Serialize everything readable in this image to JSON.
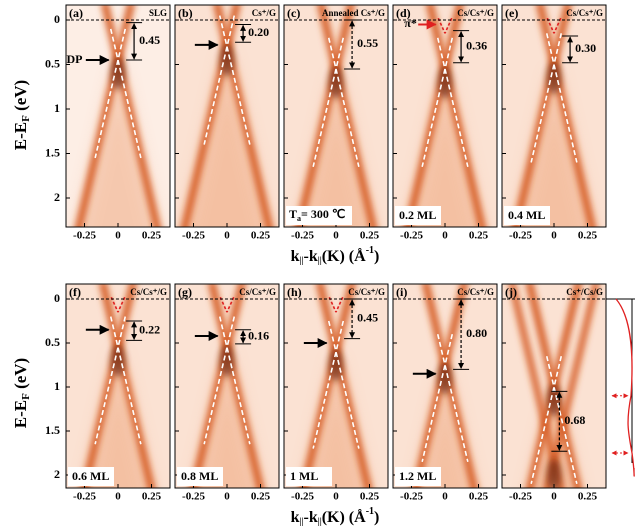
{
  "y_axis_label": {
    "main": "E-E",
    "sub": "F",
    "unit": " (eV)"
  },
  "x_axis_label": {
    "k1": "k",
    "s1": "||",
    "k2": "-k",
    "s2": "||",
    "rest": "(K) (Å",
    "sup": "-1",
    "end": ")"
  },
  "x_ticks": [
    "-0.25",
    "0",
    "0.25"
  ],
  "y_ticks": [
    "0",
    "0.5",
    "1",
    "1.5",
    "2"
  ],
  "panels": [
    {
      "label": "(a)",
      "title": "SLG",
      "gap": "0.45",
      "pointer": "DP"
    },
    {
      "label": "(b)",
      "title": "Cs⁺/G",
      "gap": "0.20"
    },
    {
      "label": "(c)",
      "title": "Annealed Cs⁺/G",
      "gap": "0.55",
      "anneal": {
        "main": "T",
        "sub": "a",
        "rest": "= 300 ℃"
      }
    },
    {
      "label": "(d)",
      "title": "Cs/Cs⁺/G",
      "gap": "0.36",
      "coverage": "0.2 ML",
      "pointer": "π*"
    },
    {
      "label": "(e)",
      "title": "Cs/Cs⁺/G",
      "gap": "0.30",
      "coverage": "0.4 ML"
    },
    {
      "label": "(f)",
      "title": "Cs/Cs⁺/G",
      "gap": "0.22",
      "coverage": "0.6 ML"
    },
    {
      "label": "(g)",
      "title": "Cs/Cs⁺/G",
      "gap": "0.16",
      "coverage": "0.8 ML"
    },
    {
      "label": "(h)",
      "title": "Cs/Cs⁺/G",
      "gap": "0.45",
      "coverage": "1 ML"
    },
    {
      "label": "(i)",
      "title": "Cs/Cs⁺/G",
      "gap": "0.80",
      "coverage": "1.2 ML"
    },
    {
      "label": "(j)",
      "title": "Cs⁺/Cs/G",
      "gap": "0.68"
    }
  ]
}
